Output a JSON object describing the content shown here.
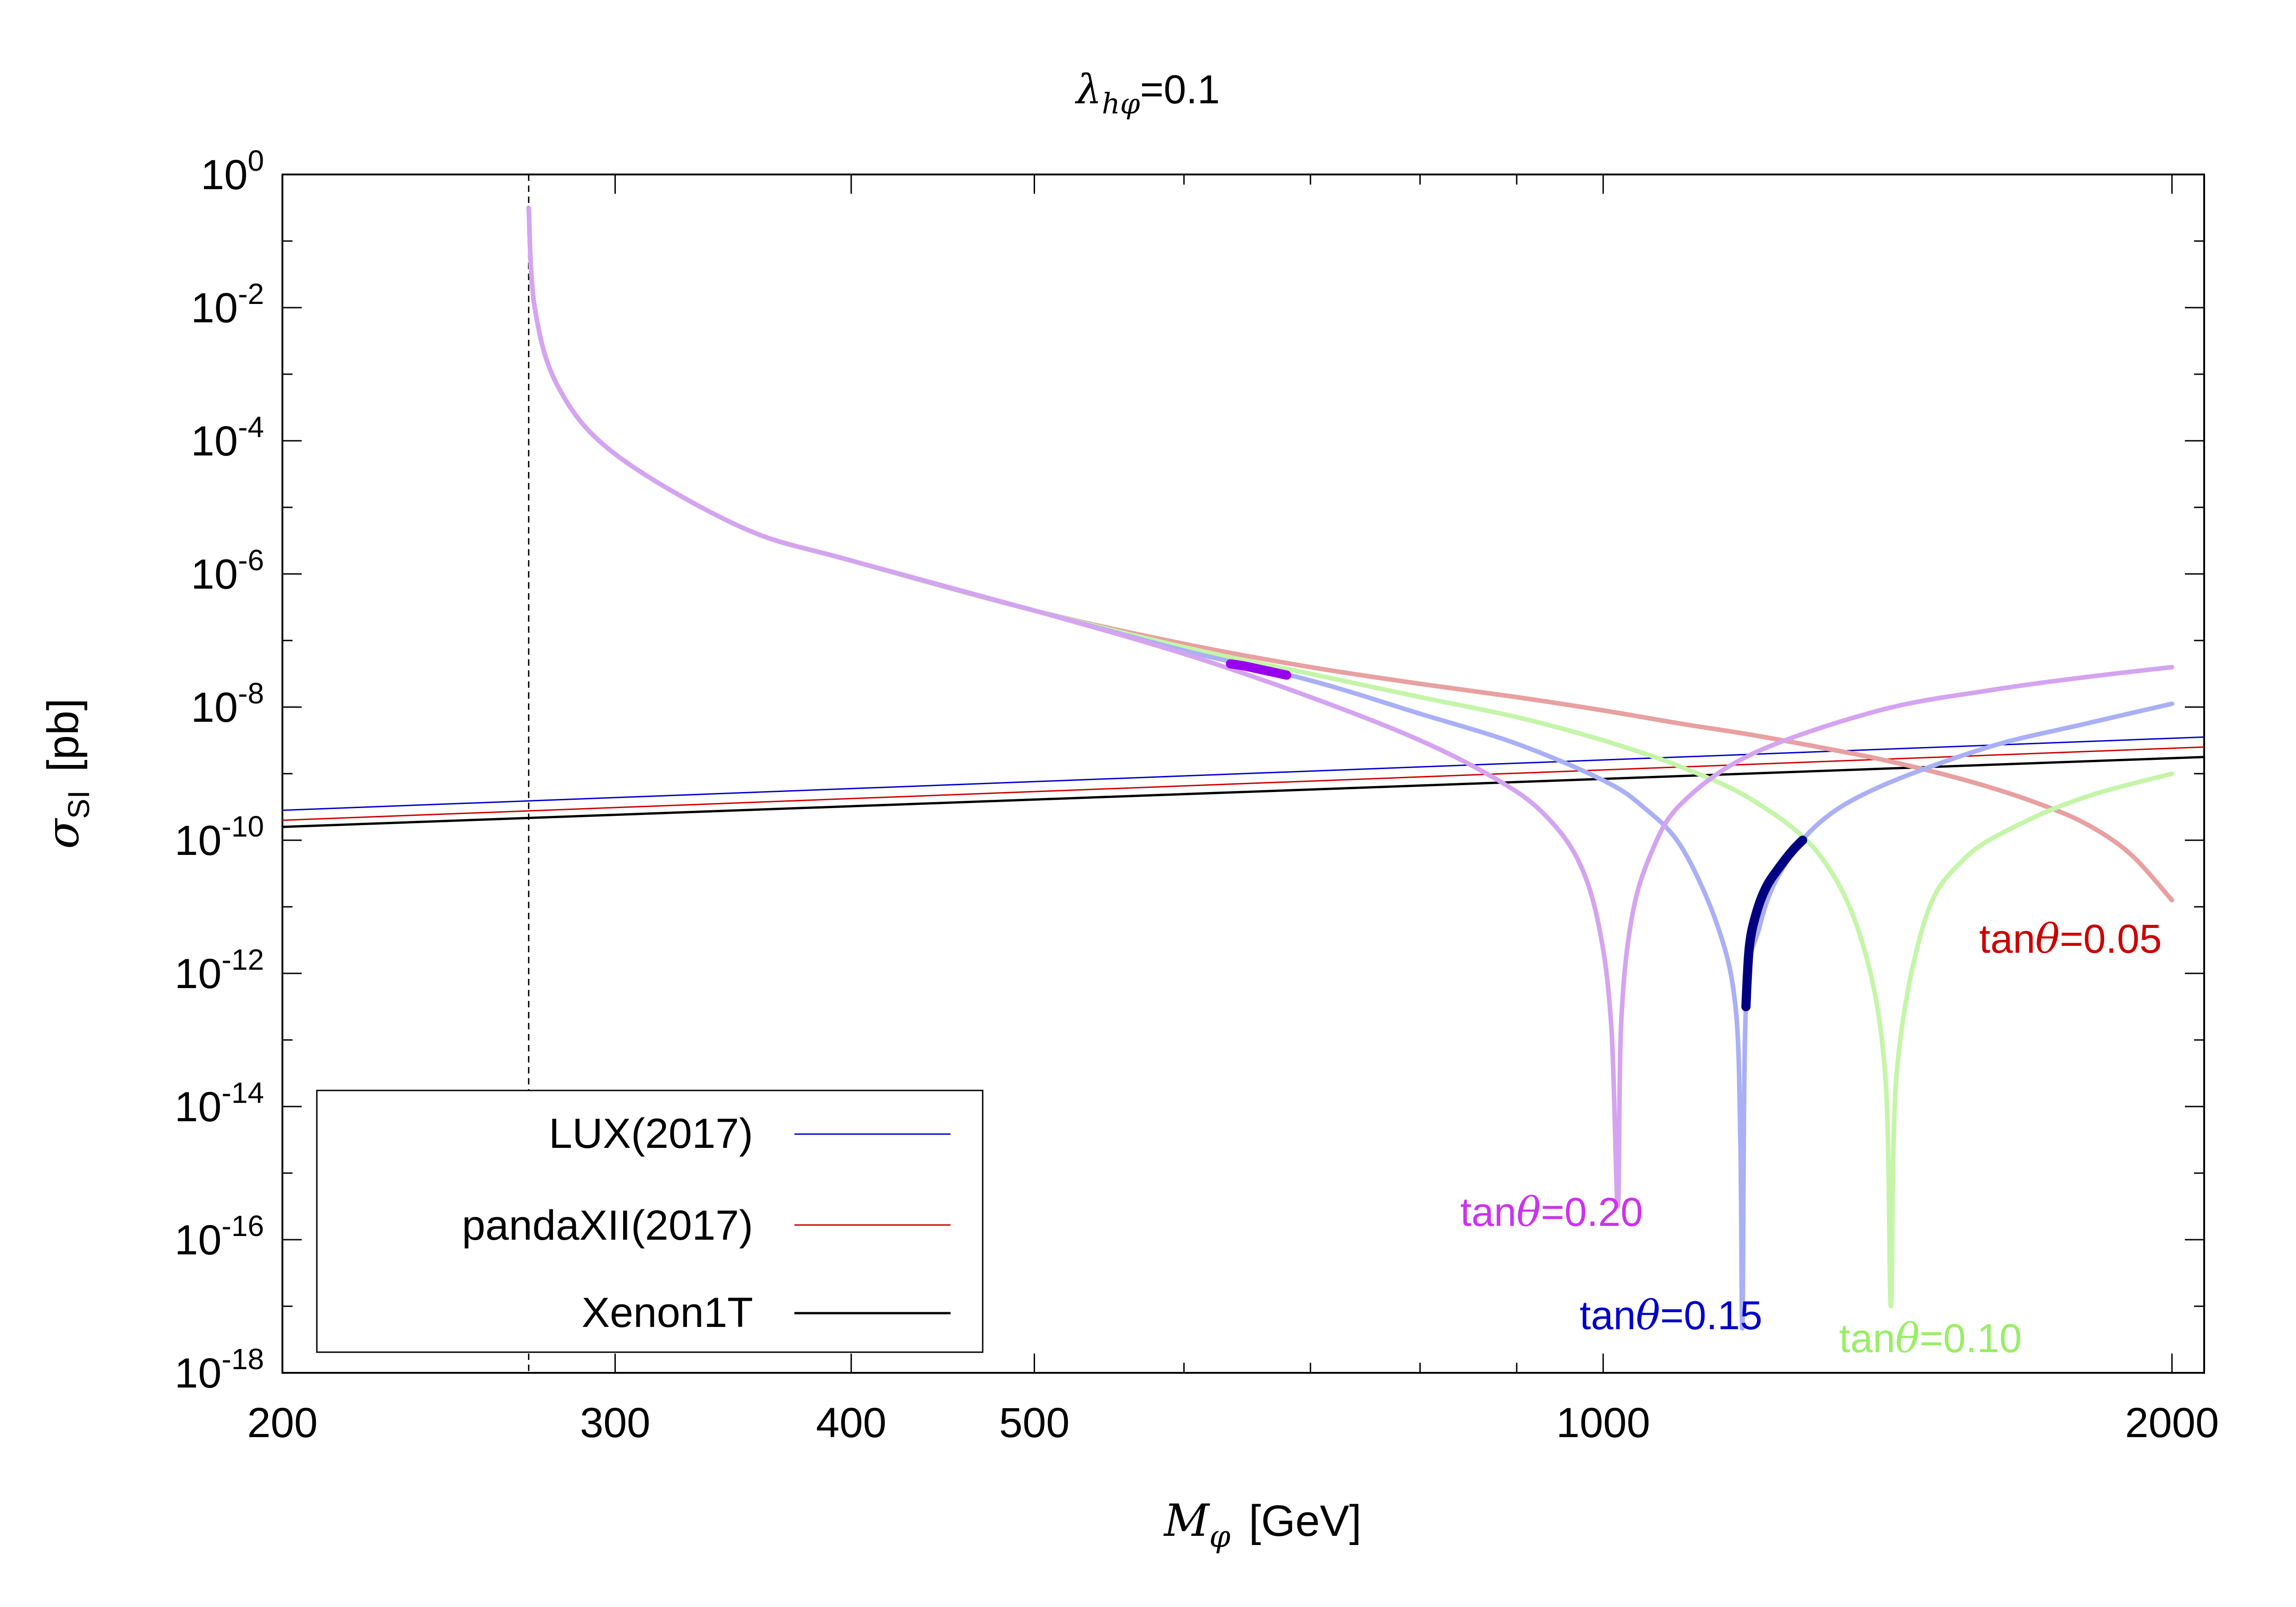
{
  "chart_data": {
    "type": "line",
    "title": {
      "symbol": "λ",
      "subscript": "hφ",
      "value_text": "=0.1"
    },
    "x_axis": {
      "label_symbol": "M",
      "label_subscript": "φ",
      "label_unit": "[GeV]",
      "scale": "log",
      "range": [
        200,
        2080
      ],
      "major_ticks": [
        200,
        300,
        400,
        500,
        1000,
        2000
      ],
      "major_tick_labels": [
        "200",
        "300",
        "400",
        "500",
        "1000",
        "2000"
      ],
      "minor_ticks": [
        600,
        700,
        800,
        900
      ]
    },
    "y_axis": {
      "label_symbol": "σ",
      "label_subscript": "SI",
      "label_unit": "[pb]",
      "scale": "log",
      "range_exponent": [
        -18,
        0
      ],
      "tick_exponents": [
        0,
        -2,
        -4,
        -6,
        -8,
        -10,
        -12,
        -14,
        -16,
        -18
      ],
      "tick_labels": [
        {
          "base": "10",
          "exp": "0"
        },
        {
          "base": "10",
          "exp": "-2"
        },
        {
          "base": "10",
          "exp": "-4"
        },
        {
          "base": "10",
          "exp": "-6"
        },
        {
          "base": "10",
          "exp": "-8"
        },
        {
          "base": "10",
          "exp": "-10"
        },
        {
          "base": "10",
          "exp": "-12"
        },
        {
          "base": "10",
          "exp": "-14"
        },
        {
          "base": "10",
          "exp": "-16"
        },
        {
          "base": "10",
          "exp": "-18"
        }
      ]
    },
    "threshold_line_x": 270,
    "experimental_limits": [
      {
        "name": "LUX(2017)",
        "color": "#0000cc",
        "x": [
          200,
          2080
        ],
        "log10_y": [
          -9.55,
          -8.45
        ]
      },
      {
        "name": "pandaXII(2017)",
        "color": "#cc0000",
        "x": [
          200,
          2080
        ],
        "log10_y": [
          -9.7,
          -8.6
        ]
      },
      {
        "name": "Xenon1T",
        "color": "#000000",
        "x": [
          200,
          2080
        ],
        "log10_y": [
          -9.8,
          -8.75
        ]
      }
    ],
    "model_curves": [
      {
        "name": "tanθ=0.05",
        "label_prefix": "tan",
        "label_symbol": "θ",
        "label_value": "=0.05",
        "color": "#e8a0a0",
        "label_color": "#cc0000",
        "points": [
          [
            270,
            -0.5
          ],
          [
            272,
            -2.0
          ],
          [
            280,
            -3.2
          ],
          [
            300,
            -4.2
          ],
          [
            350,
            -5.3
          ],
          [
            400,
            -5.8
          ],
          [
            500,
            -6.55
          ],
          [
            600,
            -7.05
          ],
          [
            700,
            -7.4
          ],
          [
            800,
            -7.65
          ],
          [
            900,
            -7.85
          ],
          [
            1000,
            -8.05
          ],
          [
            1100,
            -8.25
          ],
          [
            1200,
            -8.42
          ],
          [
            1300,
            -8.6
          ],
          [
            1400,
            -8.78
          ],
          [
            1500,
            -8.98
          ],
          [
            1600,
            -9.2
          ],
          [
            1700,
            -9.45
          ],
          [
            1800,
            -9.75
          ],
          [
            1900,
            -10.2
          ],
          [
            2000,
            -10.9
          ]
        ]
      },
      {
        "name": "tanθ=0.10",
        "label_prefix": "tan",
        "label_symbol": "θ",
        "label_value": "=0.10",
        "color": "#c4f5a8",
        "label_color": "#99ee66",
        "points": [
          [
            270,
            -0.5
          ],
          [
            272,
            -2.0
          ],
          [
            280,
            -3.2
          ],
          [
            300,
            -4.2
          ],
          [
            350,
            -5.3
          ],
          [
            400,
            -5.8
          ],
          [
            500,
            -6.55
          ],
          [
            600,
            -7.1
          ],
          [
            700,
            -7.5
          ],
          [
            800,
            -7.85
          ],
          [
            900,
            -8.15
          ],
          [
            1000,
            -8.5
          ],
          [
            1100,
            -8.9
          ],
          [
            1200,
            -9.4
          ],
          [
            1300,
            -10.2
          ],
          [
            1370,
            -11.5
          ],
          [
            1410,
            -13.5
          ],
          [
            1420,
            -17.0
          ],
          [
            1430,
            -13.5
          ],
          [
            1480,
            -11.2
          ],
          [
            1550,
            -10.3
          ],
          [
            1650,
            -9.8
          ],
          [
            1800,
            -9.35
          ],
          [
            2000,
            -9.0
          ]
        ]
      },
      {
        "name": "tanθ=0.15",
        "label_prefix": "tan",
        "label_symbol": "θ",
        "label_value": "=0.15",
        "color": "#aab0f5",
        "label_color": "#0000cc",
        "points": [
          [
            270,
            -0.5
          ],
          [
            272,
            -2.0
          ],
          [
            280,
            -3.2
          ],
          [
            300,
            -4.2
          ],
          [
            350,
            -5.3
          ],
          [
            400,
            -5.8
          ],
          [
            500,
            -6.55
          ],
          [
            600,
            -7.15
          ],
          [
            700,
            -7.6
          ],
          [
            800,
            -8.1
          ],
          [
            900,
            -8.55
          ],
          [
            1000,
            -9.1
          ],
          [
            1050,
            -9.5
          ],
          [
            1100,
            -10.1
          ],
          [
            1150,
            -11.3
          ],
          [
            1175,
            -12.5
          ],
          [
            1182,
            -14.5
          ],
          [
            1185,
            -17.3
          ],
          [
            1190,
            -12.5
          ],
          [
            1210,
            -11.3
          ],
          [
            1240,
            -10.5
          ],
          [
            1300,
            -9.75
          ],
          [
            1400,
            -9.2
          ],
          [
            1600,
            -8.6
          ],
          [
            1800,
            -8.25
          ],
          [
            2000,
            -7.95
          ]
        ]
      },
      {
        "name": "tanθ=0.20",
        "label_prefix": "tan",
        "label_symbol": "θ",
        "label_value": "=0.20",
        "color": "#d4a4f0",
        "label_color": "#cc33ee",
        "points": [
          [
            270,
            -0.5
          ],
          [
            272,
            -2.0
          ],
          [
            280,
            -3.2
          ],
          [
            300,
            -4.2
          ],
          [
            350,
            -5.3
          ],
          [
            400,
            -5.8
          ],
          [
            500,
            -6.55
          ],
          [
            600,
            -7.2
          ],
          [
            700,
            -7.85
          ],
          [
            800,
            -8.5
          ],
          [
            880,
            -9.1
          ],
          [
            930,
            -9.6
          ],
          [
            970,
            -10.3
          ],
          [
            995,
            -11.3
          ],
          [
            1010,
            -12.8
          ],
          [
            1018,
            -15.5
          ],
          [
            1022,
            -12.8
          ],
          [
            1035,
            -11.2
          ],
          [
            1060,
            -10.2
          ],
          [
            1100,
            -9.45
          ],
          [
            1200,
            -8.7
          ],
          [
            1400,
            -8.05
          ],
          [
            1600,
            -7.75
          ],
          [
            1800,
            -7.55
          ],
          [
            2000,
            -7.4
          ]
        ]
      }
    ],
    "highlight_segments": [
      {
        "series": "tanθ=0.20",
        "color": "#9900ee",
        "points": [
          [
            635,
            -7.35
          ],
          [
            645,
            -7.38
          ],
          [
            655,
            -7.42
          ],
          [
            665,
            -7.46
          ],
          [
            675,
            -7.5
          ],
          [
            680,
            -7.52
          ]
        ]
      },
      {
        "series": "tanθ=0.15",
        "color": "#000080",
        "points": [
          [
            1190,
            -12.5
          ],
          [
            1195,
            -11.6
          ],
          [
            1205,
            -11.1
          ],
          [
            1220,
            -10.7
          ],
          [
            1240,
            -10.4
          ],
          [
            1260,
            -10.15
          ],
          [
            1275,
            -10.0
          ]
        ]
      }
    ]
  }
}
